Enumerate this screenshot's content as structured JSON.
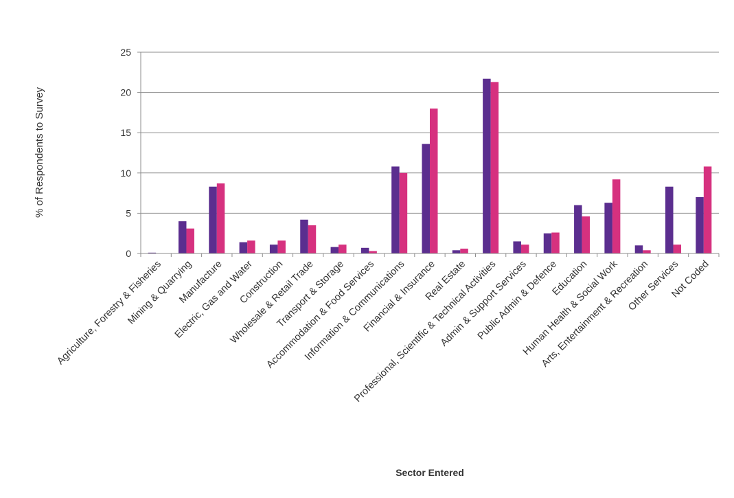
{
  "chart_data": {
    "type": "bar",
    "title": "",
    "xlabel": "Sector Entered",
    "ylabel": "% of Respondents  to Survey",
    "ylim": [
      0,
      25
    ],
    "yticks": [
      0,
      5,
      10,
      15,
      20,
      25
    ],
    "grid": true,
    "legend": "none",
    "categories": [
      "Agriculture, Forestry & Fisheries",
      "Mining & Quarrying",
      "Manufacture",
      "Electric, Gas and Water",
      "Construction",
      "Wholesale & Retail Trade",
      "Transport & Storage",
      "Accommodation & Food Services",
      "Information & Communications",
      "Financial & Insurance",
      "Real Estate",
      "Professional, Scientific & Technical Activities",
      "Admin & Support Services",
      "Public Admin & Defence",
      "Education",
      "Human Health & Social Work",
      "Arts, Entertainment & Recreation",
      "Other Services",
      "Not Coded"
    ],
    "series": [
      {
        "color": "#5b2e8f",
        "values": [
          0.1,
          4.0,
          8.3,
          1.4,
          1.1,
          4.2,
          0.8,
          0.7,
          10.8,
          13.6,
          0.4,
          21.7,
          1.5,
          2.5,
          6.0,
          6.3,
          1.0,
          8.3,
          7.0
        ]
      },
      {
        "color": "#d6317f",
        "values": [
          0.0,
          3.1,
          8.7,
          1.6,
          1.6,
          3.5,
          1.1,
          0.3,
          10.0,
          18.0,
          0.6,
          21.3,
          1.1,
          2.6,
          4.6,
          9.2,
          0.4,
          1.1,
          10.8
        ]
      }
    ]
  }
}
